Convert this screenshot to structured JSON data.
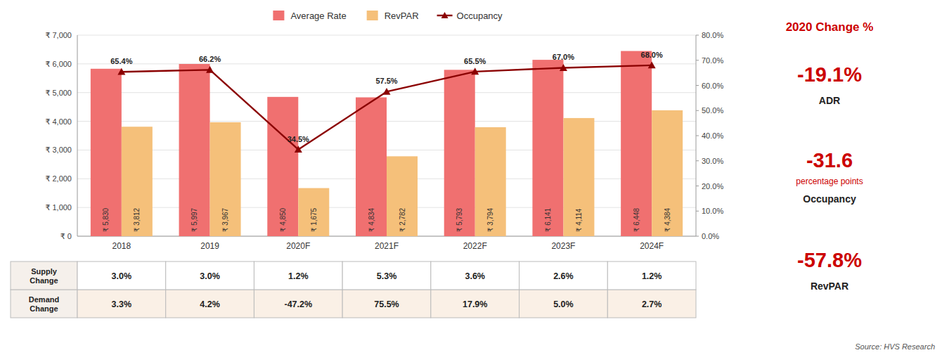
{
  "chart_data": {
    "type": "bar",
    "categories": [
      "2018",
      "2019",
      "2020F",
      "2021F",
      "2022F",
      "2023F",
      "2024F"
    ],
    "series": [
      {
        "name": "Average Rate",
        "color": "#F07070",
        "values": [
          5830,
          5997,
          4850,
          4834,
          5793,
          6141,
          6448
        ],
        "value_labels": [
          "₹ 5,830",
          "₹ 5,997",
          "₹ 4,850",
          "₹ 4,834",
          "₹ 5,793",
          "₹ 6,141",
          "₹ 6,448"
        ]
      },
      {
        "name": "RevPAR",
        "color": "#F5C07A",
        "values": [
          3812,
          3967,
          1675,
          2782,
          3794,
          4114,
          4384
        ],
        "value_labels": [
          "₹ 3,812",
          "₹ 3,967",
          "₹ 1,675",
          "₹ 2,782",
          "₹ 3,794",
          "₹ 4,114",
          "₹ 4,384"
        ]
      },
      {
        "name": "Occupancy",
        "type": "line",
        "axis": "y2",
        "color": "#8B0000",
        "marker": "triangle",
        "values": [
          65.4,
          66.2,
          34.5,
          57.5,
          65.5,
          67.0,
          68.0
        ],
        "value_labels": [
          "65.4%",
          "66.2%",
          "34.5%",
          "57.5%",
          "65.5%",
          "67.0%",
          "68.0%"
        ]
      }
    ],
    "ylim": [
      0,
      7000
    ],
    "yticks": [
      {
        "value": 0,
        "label": "₹ 0"
      },
      {
        "value": 1000,
        "label": "₹ 1,000"
      },
      {
        "value": 2000,
        "label": "₹ 2,000"
      },
      {
        "value": 3000,
        "label": "₹ 3,000"
      },
      {
        "value": 4000,
        "label": "₹ 4,000"
      },
      {
        "value": 5000,
        "label": "₹ 5,000"
      },
      {
        "value": 6000,
        "label": "₹ 6,000"
      },
      {
        "value": 7000,
        "label": "₹ 7,000"
      }
    ],
    "y2lim": [
      0.0,
      80.0
    ],
    "y2ticks": [
      {
        "value": 0,
        "label": "0.0%"
      },
      {
        "value": 10,
        "label": "10.0%"
      },
      {
        "value": 20,
        "label": "20.0%"
      },
      {
        "value": 30,
        "label": "30.0%"
      },
      {
        "value": 40,
        "label": "40.0%"
      },
      {
        "value": 50,
        "label": "50.0%"
      },
      {
        "value": 60,
        "label": "60.0%"
      },
      {
        "value": 70,
        "label": "70.0%"
      },
      {
        "value": 80,
        "label": "80.0%"
      }
    ],
    "grid": true,
    "legend": "top",
    "data_labels": true,
    "table": {
      "rows": [
        {
          "label": "Demand\nChange",
          "color": "#FAF0E6",
          "values": [
            3.3,
            4.2,
            -47.2,
            75.5,
            17.9,
            5.0,
            2.7
          ],
          "value_labels": [
            "3.3%",
            "4.2%",
            "-47.2%",
            "75.5%",
            "17.9%",
            "5.0%",
            "2.7%"
          ]
        },
        {
          "label": "Supply\nChange",
          "color": "#FFFFFF",
          "values": [
            3.0,
            3.0,
            1.2,
            5.3,
            3.6,
            2.6,
            1.2
          ],
          "value_labels": [
            "3.0%",
            "3.0%",
            "1.2%",
            "5.3%",
            "3.6%",
            "2.6%",
            "1.2%"
          ]
        }
      ]
    },
    "panel": {
      "title": "2020 Change %",
      "color": "#CC0000",
      "items": [
        {
          "value": -19.1,
          "label": "-19.1%",
          "text": "ADR"
        },
        {
          "value": -31.6,
          "label": "-31.6",
          "unit": "percentage points",
          "text": "Occupancy"
        },
        {
          "value": -57.8,
          "label": "-57.8%",
          "text": "RevPAR"
        }
      ]
    },
    "source": "Source: HVS Research"
  }
}
